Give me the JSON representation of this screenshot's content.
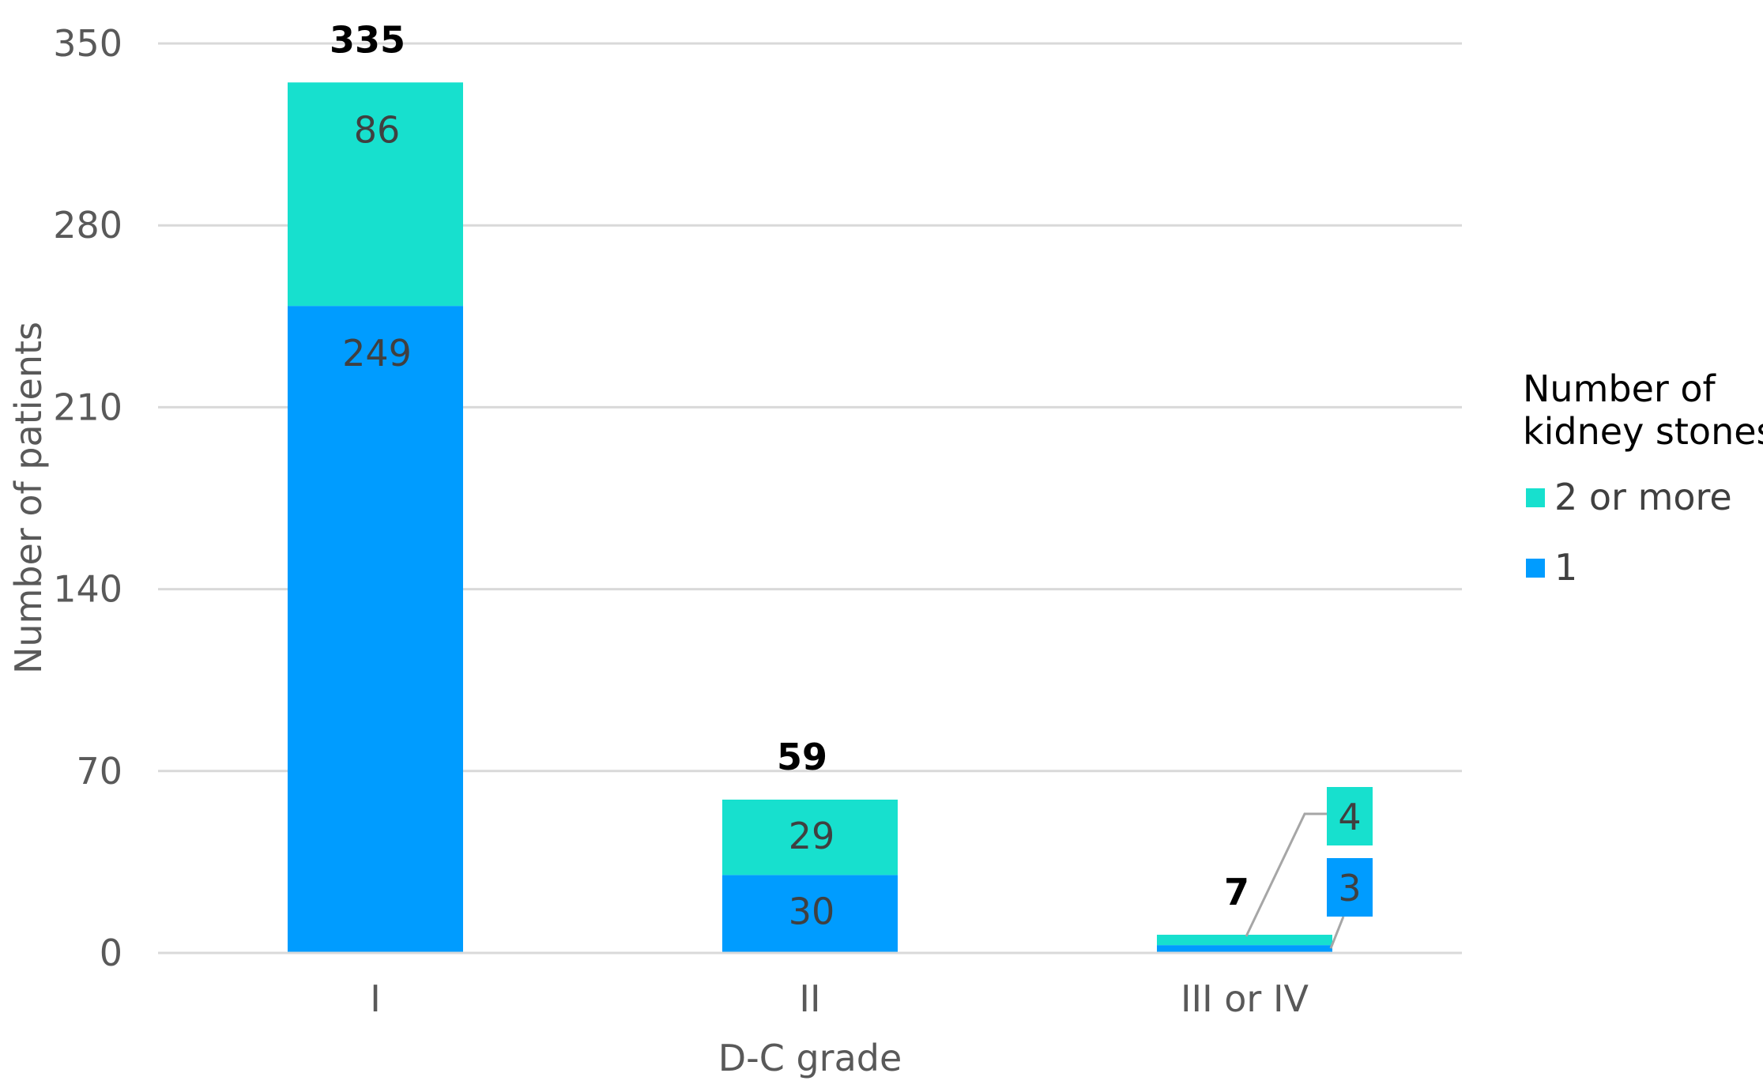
{
  "chart_data": {
    "type": "bar",
    "stacked": true,
    "categories": [
      "I",
      "II",
      "III or IV"
    ],
    "series": [
      {
        "name": "1",
        "values": [
          249,
          30,
          3
        ],
        "color": "#009CFF"
      },
      {
        "name": "2 or more",
        "values": [
          86,
          29,
          4
        ],
        "color": "#17E0CE"
      }
    ],
    "totals": [
      335,
      59,
      7
    ],
    "xlabel": "D-C grade",
    "ylabel": "Number of patients",
    "ylim": [
      0,
      350
    ],
    "yticks": [
      0,
      70,
      140,
      210,
      280,
      350
    ],
    "grid": true,
    "legend": {
      "title_lines": [
        "Number of",
        "kidney stones"
      ],
      "entries": [
        "2 or more",
        "1"
      ],
      "placement": "right"
    },
    "callout": {
      "category": "III or IV",
      "values": [
        4,
        3
      ]
    }
  }
}
